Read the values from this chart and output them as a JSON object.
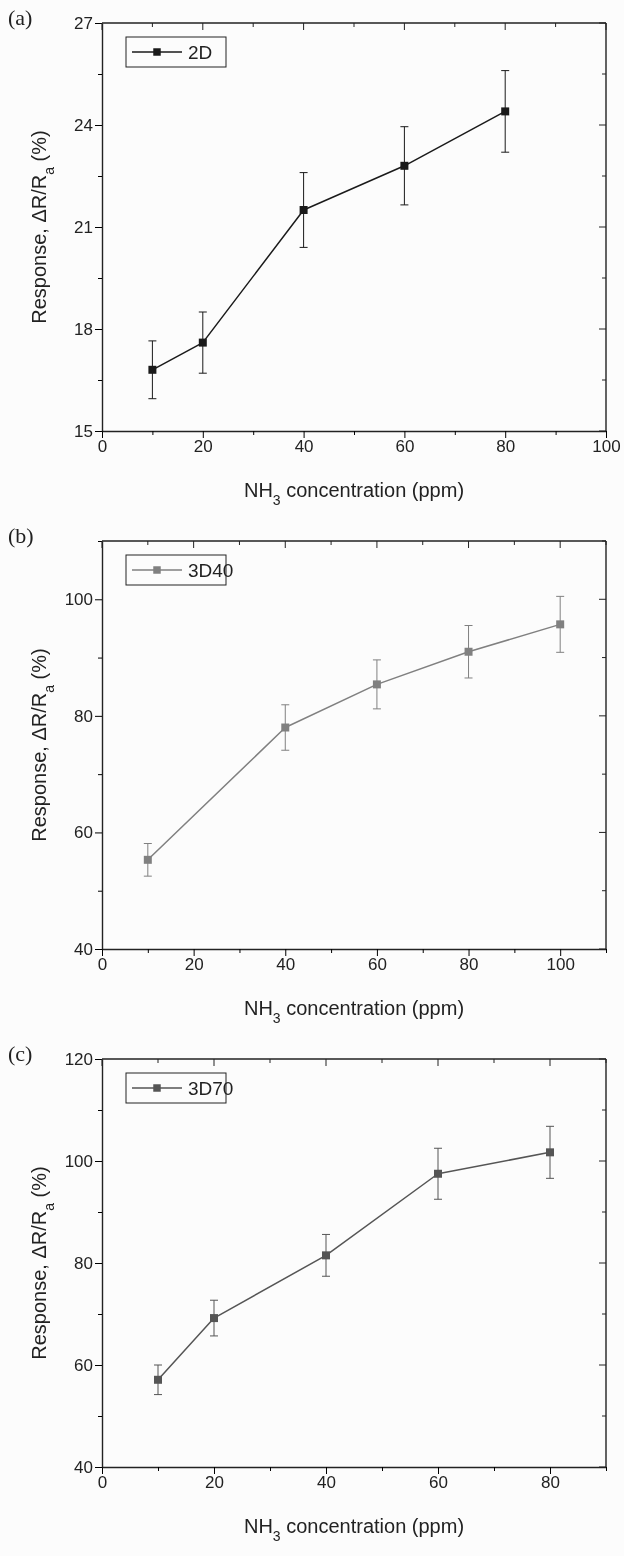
{
  "chart_data": [
    {
      "type": "line",
      "title": "(a)",
      "xlabel": "NH$_{3}$ concentration (ppm)",
      "ylabel": "Response, ΔR/R$_{a}$ (%)",
      "x": [
        10,
        20,
        40,
        60,
        80
      ],
      "series": [
        {
          "name": "2D",
          "color": "#1a1a1a",
          "values": [
            16.8,
            17.6,
            21.5,
            22.8,
            24.4
          ],
          "errors": [
            0.85,
            0.9,
            1.1,
            1.15,
            1.2
          ]
        }
      ],
      "xlim": [
        0,
        100
      ],
      "xticks": [
        0,
        {
          "value": 10,
          "label": null
        },
        20,
        {
          "value": 30,
          "label": null
        },
        40,
        {
          "value": 50,
          "label": null
        },
        60,
        {
          "value": 70,
          "label": null
        },
        80,
        {
          "value": 90,
          "label": null
        },
        100
      ],
      "ylim": [
        15,
        27
      ],
      "yticks": [
        15,
        {
          "value": 16.5,
          "label": null
        },
        18,
        {
          "value": 19.5,
          "label": null
        },
        21,
        {
          "value": 22.5,
          "label": null
        },
        24,
        {
          "value": 25.5,
          "label": null
        },
        27
      ],
      "marker": "square",
      "legend": "top left",
      "grid": false
    },
    {
      "type": "line",
      "title": "(b)",
      "xlabel": "NH$_{3}$ concentration (ppm)",
      "ylabel": "Response, ΔR/R$_{a}$ (%)",
      "x": [
        10,
        40,
        60,
        80,
        100
      ],
      "series": [
        {
          "name": "3D40",
          "color": "#808080",
          "values": [
            55.3,
            78.0,
            85.4,
            91.0,
            95.7
          ],
          "errors": [
            2.8,
            3.9,
            4.2,
            4.5,
            4.8
          ]
        }
      ],
      "xlim": [
        0,
        110
      ],
      "xticks": [
        0,
        {
          "value": 10,
          "label": null
        },
        20,
        {
          "value": 30,
          "label": null
        },
        40,
        {
          "value": 50,
          "label": null
        },
        60,
        {
          "value": 70,
          "label": null
        },
        80,
        {
          "value": 90,
          "label": null
        },
        100,
        {
          "value": 110,
          "label": null
        }
      ],
      "ylim": [
        40,
        110
      ],
      "yticks": [
        40,
        {
          "value": 50,
          "label": null
        },
        60,
        {
          "value": 70,
          "label": null
        },
        80,
        {
          "value": 90,
          "label": null
        },
        100,
        {
          "value": 110,
          "label": null
        }
      ],
      "marker": "square",
      "legend": "top left",
      "grid": false
    },
    {
      "type": "line",
      "title": "(c)",
      "xlabel": "NH$_{3}$ concentration (ppm)",
      "ylabel": "Response, ΔR/R$_{a}$ (%)",
      "x": [
        10,
        20,
        40,
        60,
        80
      ],
      "series": [
        {
          "name": "3D70",
          "color": "#555555",
          "values": [
            57.1,
            69.2,
            81.5,
            97.5,
            101.7
          ],
          "errors": [
            2.9,
            3.5,
            4.1,
            5.0,
            5.1
          ]
        }
      ],
      "xlim": [
        0,
        90
      ],
      "xticks": [
        0,
        {
          "value": 10,
          "label": null
        },
        20,
        {
          "value": 30,
          "label": null
        },
        40,
        {
          "value": 50,
          "label": null
        },
        60,
        {
          "value": 70,
          "label": null
        },
        80,
        {
          "value": 90,
          "label": null
        }
      ],
      "ylim": [
        40,
        120
      ],
      "yticks": [
        40,
        {
          "value": 50,
          "label": null
        },
        60,
        {
          "value": 70,
          "label": null
        },
        80,
        {
          "value": 90,
          "label": null
        },
        100,
        {
          "value": 110,
          "label": null
        },
        120
      ],
      "marker": "square",
      "legend": "top left",
      "grid": false
    }
  ]
}
